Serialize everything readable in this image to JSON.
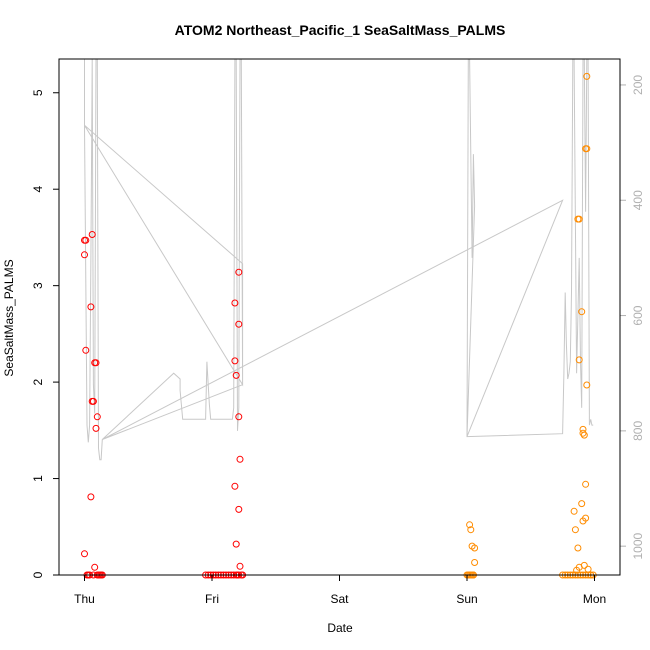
{
  "chart_data": {
    "type": "scatter",
    "title": "ATOM2 Northeast_Pacific_1 SeaSaltMass_PALMS",
    "xlabel": "Date",
    "ylabel": "SeaSaltMass_PALMS",
    "x_tick_labels": [
      "Thu",
      "Fri",
      "Sat",
      "Sun",
      "Mon"
    ],
    "x_tick_days": [
      0,
      1,
      2,
      3,
      4
    ],
    "xlim": [
      -0.2,
      4.2
    ],
    "ylim": [
      0,
      5.35
    ],
    "y_ticks": [
      0,
      1,
      2,
      3,
      4,
      5
    ],
    "y2_label": "",
    "y2_lim": [
      1050,
      155
    ],
    "y2_ticks": [
      200,
      400,
      600,
      800,
      1000
    ],
    "grid": false,
    "colors": {
      "red": "#ff0000",
      "orange": "#ff8c00",
      "line": "#c8c8c8"
    },
    "series": [
      {
        "color": "red",
        "points": [
          [
            0.0,
            3.47
          ],
          [
            0.01,
            3.47
          ],
          [
            0.0,
            3.32
          ],
          [
            0.01,
            2.33
          ],
          [
            0.0,
            0.22
          ],
          [
            0.02,
            0.0
          ],
          [
            0.03,
            0.0
          ],
          [
            0.04,
            0.0
          ],
          [
            0.05,
            2.78
          ],
          [
            0.05,
            0.81
          ],
          [
            0.06,
            1.8
          ],
          [
            0.07,
            1.8
          ],
          [
            0.06,
            3.53
          ],
          [
            0.08,
            2.2
          ],
          [
            0.09,
            2.2
          ],
          [
            0.09,
            1.52
          ],
          [
            0.1,
            1.64
          ],
          [
            0.08,
            0.08
          ],
          [
            0.1,
            0.0
          ],
          [
            0.12,
            0.0
          ],
          [
            0.13,
            0.0
          ],
          [
            0.14,
            0.0
          ],
          [
            0.07,
            0.0
          ],
          [
            0.11,
            0.0
          ],
          [
            0.95,
            0.0
          ],
          [
            0.97,
            0.0
          ],
          [
            0.99,
            0.0
          ],
          [
            1.01,
            0.0
          ],
          [
            1.03,
            0.0
          ],
          [
            1.05,
            0.0
          ],
          [
            1.07,
            0.0
          ],
          [
            1.09,
            0.0
          ],
          [
            1.11,
            0.0
          ],
          [
            1.13,
            0.0
          ],
          [
            1.15,
            0.0
          ],
          [
            1.17,
            0.0
          ],
          [
            1.19,
            0.0
          ],
          [
            1.21,
            0.0
          ],
          [
            1.23,
            0.0
          ],
          [
            1.18,
            2.82
          ],
          [
            1.18,
            2.22
          ],
          [
            1.19,
            2.07
          ],
          [
            1.18,
            0.92
          ],
          [
            1.19,
            0.32
          ],
          [
            1.2,
            0.0
          ],
          [
            1.21,
            3.14
          ],
          [
            1.21,
            2.6
          ],
          [
            1.21,
            1.64
          ],
          [
            1.22,
            1.2
          ],
          [
            1.21,
            0.68
          ],
          [
            1.22,
            0.09
          ],
          [
            1.24,
            0.0
          ]
        ]
      },
      {
        "color": "orange",
        "points": [
          [
            3.0,
            0.0
          ],
          [
            3.01,
            0.0
          ],
          [
            3.02,
            0.0
          ],
          [
            3.03,
            0.0
          ],
          [
            3.04,
            0.0
          ],
          [
            3.05,
            0.0
          ],
          [
            3.02,
            0.52
          ],
          [
            3.03,
            0.47
          ],
          [
            3.04,
            0.3
          ],
          [
            3.06,
            0.28
          ],
          [
            3.06,
            0.13
          ],
          [
            3.05,
            0.0
          ],
          [
            3.75,
            0.0
          ],
          [
            3.77,
            0.0
          ],
          [
            3.79,
            0.0
          ],
          [
            3.81,
            0.0
          ],
          [
            3.83,
            0.0
          ],
          [
            3.85,
            0.0
          ],
          [
            3.87,
            0.0
          ],
          [
            3.89,
            0.0
          ],
          [
            3.91,
            0.0
          ],
          [
            3.93,
            0.0
          ],
          [
            3.95,
            0.0
          ],
          [
            3.97,
            0.0
          ],
          [
            3.99,
            0.0
          ],
          [
            3.84,
            0.66
          ],
          [
            3.85,
            0.47
          ],
          [
            3.86,
            0.05
          ],
          [
            3.87,
            3.69
          ],
          [
            3.88,
            3.69
          ],
          [
            3.88,
            2.23
          ],
          [
            3.87,
            0.28
          ],
          [
            3.88,
            0.08
          ],
          [
            3.9,
            2.73
          ],
          [
            3.9,
            0.74
          ],
          [
            3.91,
            0.56
          ],
          [
            3.91,
            1.51
          ],
          [
            3.91,
            1.47
          ],
          [
            3.92,
            1.45
          ],
          [
            3.92,
            0.1
          ],
          [
            3.93,
            4.42
          ],
          [
            3.94,
            4.42
          ],
          [
            3.94,
            5.17
          ],
          [
            3.94,
            1.97
          ],
          [
            3.93,
            0.94
          ],
          [
            3.93,
            0.59
          ],
          [
            3.95,
            0.06
          ],
          [
            3.97,
            0.0
          ]
        ]
      }
    ],
    "altitude_line": {
      "points": [
        [
          -0.01,
          155
        ],
        [
          0.0,
          155
        ],
        [
          0.0,
          270
        ],
        [
          0.02,
          790
        ],
        [
          0.03,
          820
        ],
        [
          0.04,
          790
        ],
        [
          0.05,
          500
        ],
        [
          0.06,
          155
        ],
        [
          0.07,
          720
        ],
        [
          0.08,
          770
        ],
        [
          0.09,
          155
        ],
        [
          0.1,
          155
        ],
        [
          0.11,
          830
        ],
        [
          0.12,
          850
        ],
        [
          0.13,
          850
        ],
        [
          0.14,
          815
        ],
        [
          0.7,
          700
        ],
        [
          0.75,
          710
        ],
        [
          0.75,
          730
        ],
        [
          0.77,
          780
        ],
        [
          0.8,
          780
        ],
        [
          0.82,
          780
        ],
        [
          0.83,
          780
        ],
        [
          0.85,
          780
        ],
        [
          0.86,
          780
        ],
        [
          0.87,
          780
        ],
        [
          0.88,
          780
        ],
        [
          0.9,
          780
        ],
        [
          0.92,
          780
        ],
        [
          0.94,
          780
        ],
        [
          0.95,
          780
        ],
        [
          0.96,
          680
        ],
        [
          0.97,
          720
        ],
        [
          0.98,
          755
        ],
        [
          0.99,
          780
        ],
        [
          1.0,
          780
        ],
        [
          1.05,
          780
        ],
        [
          1.1,
          780
        ],
        [
          1.15,
          780
        ],
        [
          1.16,
          780
        ],
        [
          1.17,
          760
        ],
        [
          1.18,
          155
        ],
        [
          1.19,
          155
        ],
        [
          1.2,
          800
        ],
        [
          1.21,
          760
        ],
        [
          1.22,
          155
        ],
        [
          1.23,
          155
        ],
        [
          1.24,
          720
        ],
        [
          0.0,
          270
        ],
        [
          1.24,
          510
        ],
        [
          1.24,
          720
        ],
        [
          0.14,
          815
        ],
        [
          3.75,
          400
        ],
        [
          3.0,
          810
        ],
        [
          3.01,
          155
        ],
        [
          3.02,
          155
        ],
        [
          3.04,
          500
        ],
        [
          3.05,
          320
        ],
        [
          3.06,
          410
        ],
        [
          3.0,
          810
        ],
        [
          3.75,
          805
        ],
        [
          3.76,
          700
        ],
        [
          3.77,
          560
        ],
        [
          3.78,
          650
        ],
        [
          3.79,
          710
        ],
        [
          3.8,
          700
        ],
        [
          3.81,
          680
        ],
        [
          3.82,
          560
        ],
        [
          3.83,
          155
        ],
        [
          3.84,
          155
        ],
        [
          3.86,
          700
        ],
        [
          3.87,
          600
        ],
        [
          3.88,
          500
        ],
        [
          3.89,
          680
        ],
        [
          3.9,
          760
        ],
        [
          3.91,
          155
        ],
        [
          3.92,
          155
        ],
        [
          3.93,
          420
        ],
        [
          3.94,
          155
        ],
        [
          3.95,
          155
        ],
        [
          3.96,
          790
        ],
        [
          3.97,
          780
        ],
        [
          3.98,
          790
        ],
        [
          3.99,
          790
        ]
      ]
    }
  }
}
